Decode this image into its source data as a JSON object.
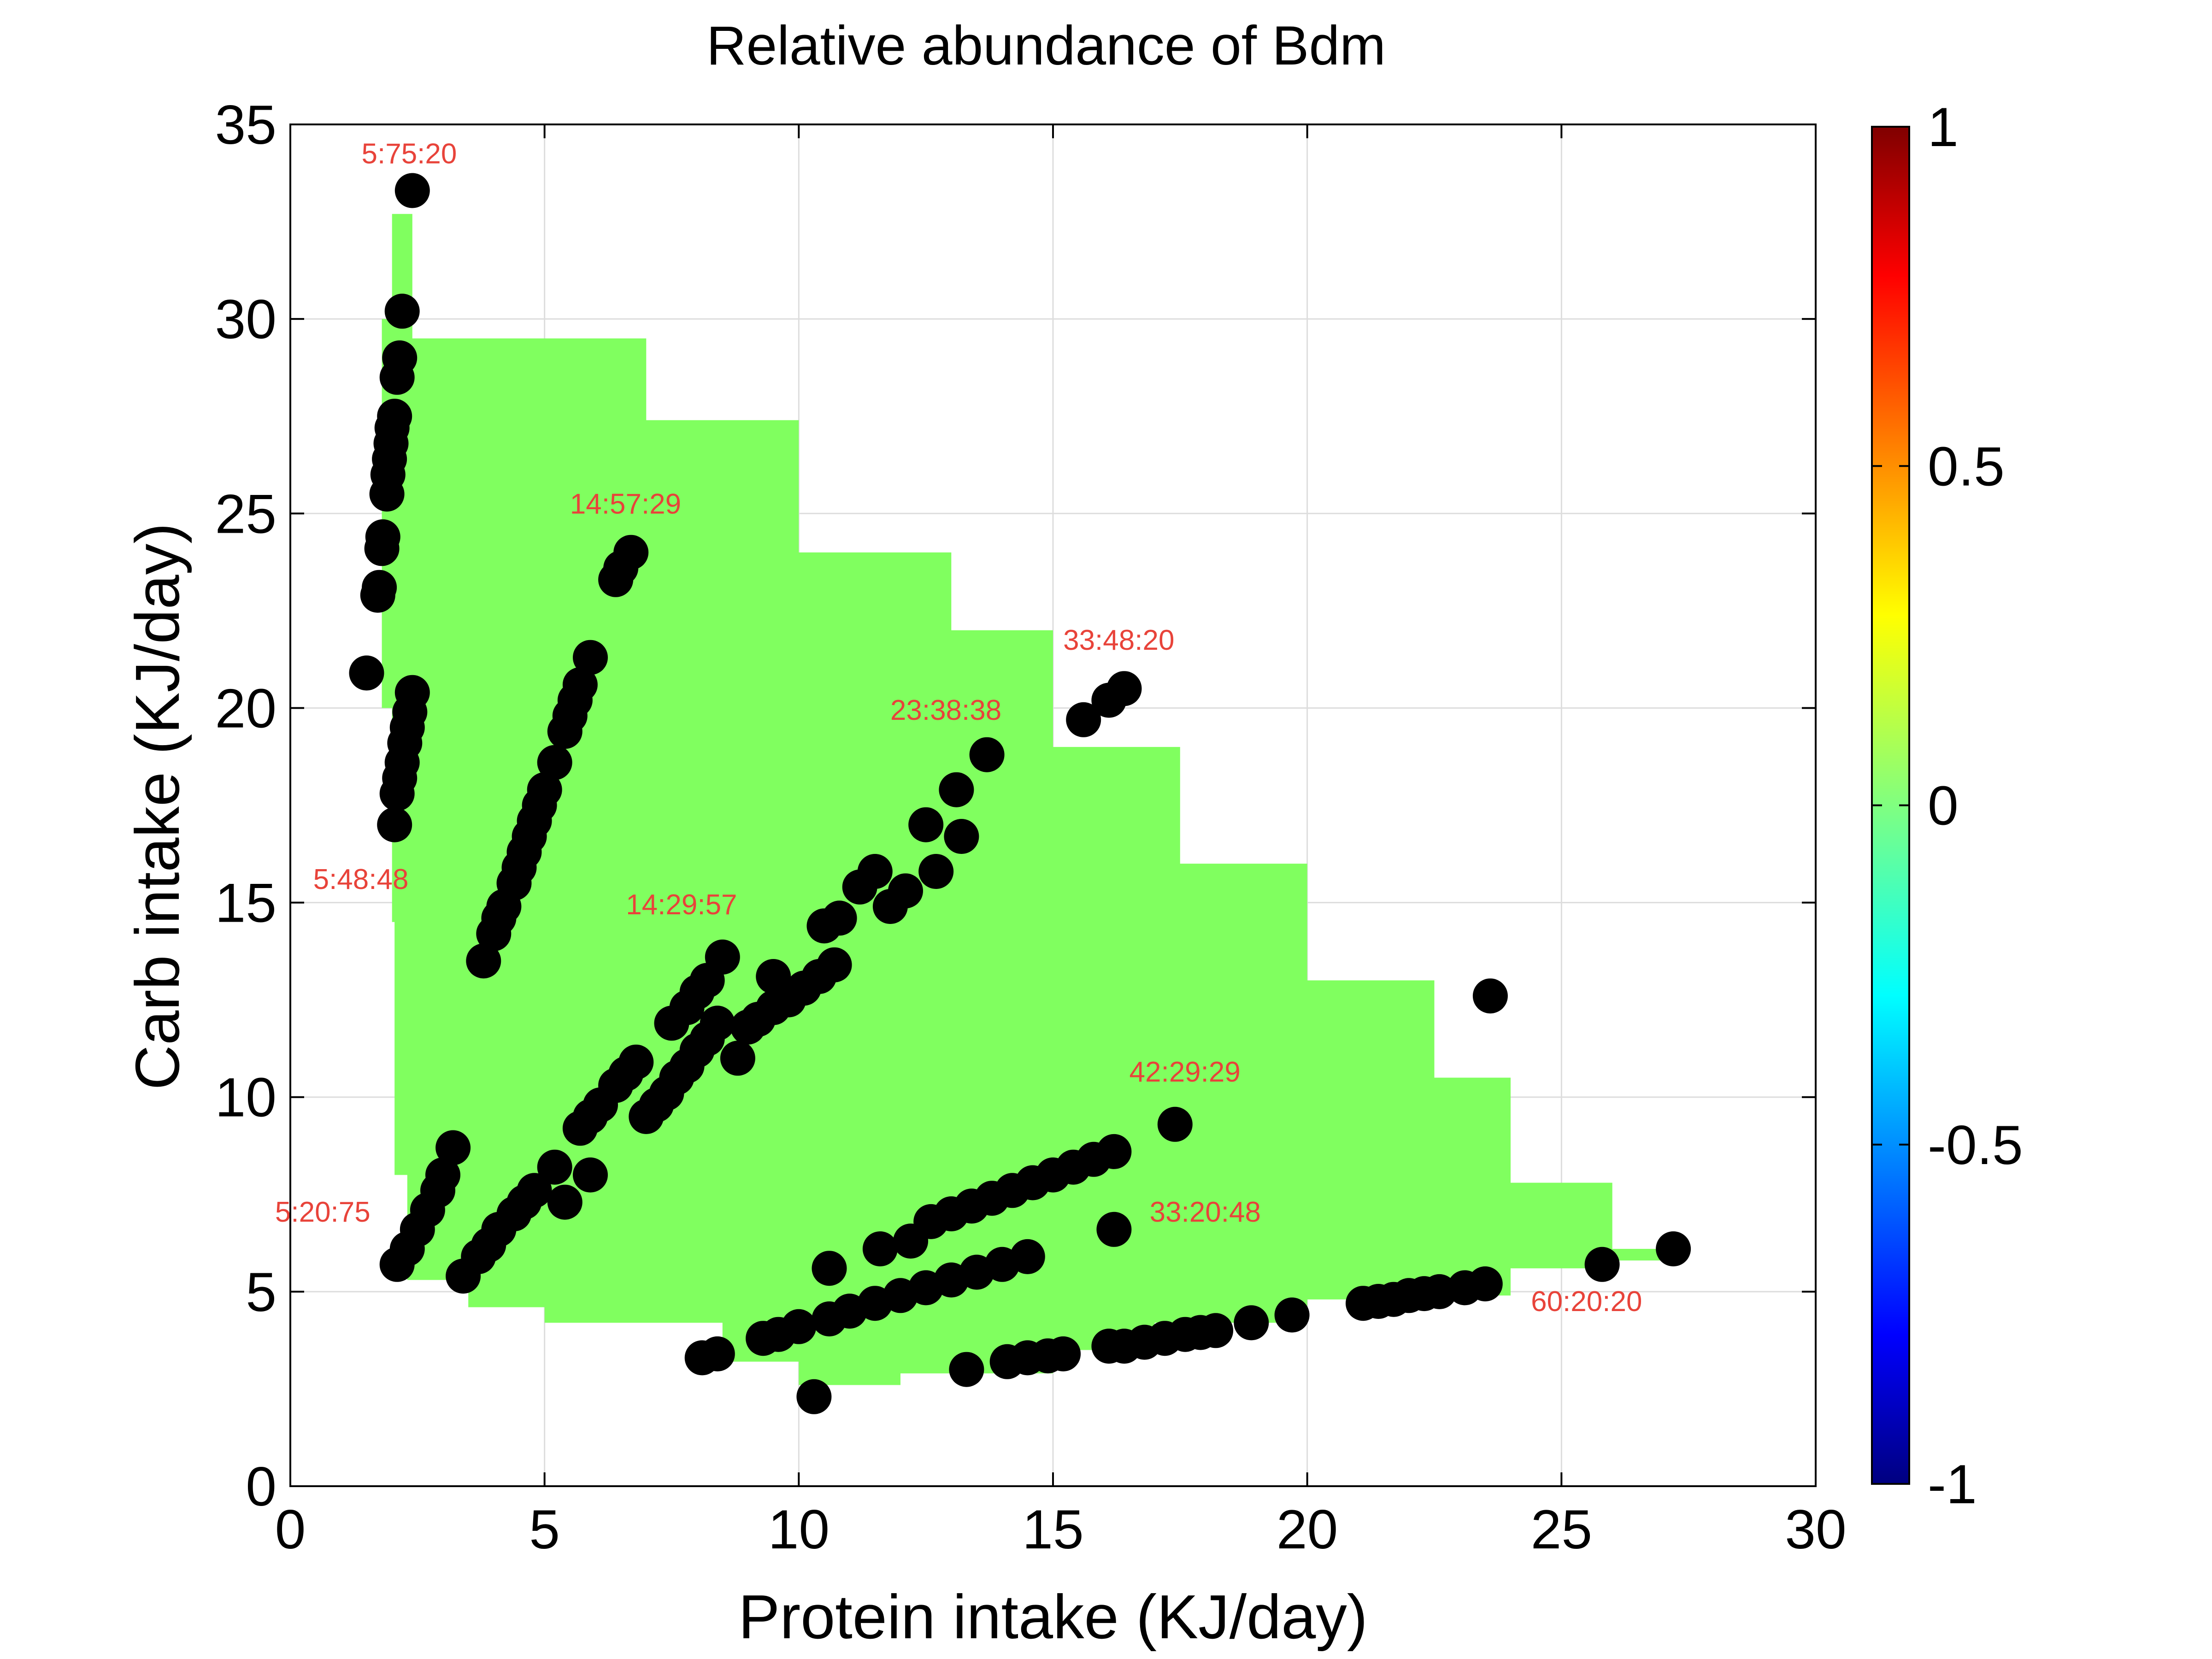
{
  "chart_data": {
    "type": "scatter",
    "title": "Relative abundance of Bdm",
    "xlabel": "Protein intake (KJ/day)",
    "ylabel": "Carb intake (KJ/day)",
    "xlim": [
      0,
      30
    ],
    "ylim": [
      0,
      35
    ],
    "xticks": [
      "0",
      "5",
      "10",
      "15",
      "20",
      "25",
      "30"
    ],
    "yticks": [
      "0",
      "5",
      "10",
      "15",
      "20",
      "25",
      "30",
      "35"
    ],
    "grid": true,
    "colorbar": {
      "range": [
        -1,
        1
      ],
      "ticks": [
        "-1",
        "-0.5",
        "0",
        "0.5",
        "1"
      ],
      "colormap": "jet"
    },
    "surface": {
      "value": 0,
      "color": "#80ff5f",
      "outline": [
        [
          2.4,
          32.7
        ],
        [
          7,
          29.5
        ],
        [
          10,
          27.4
        ],
        [
          13,
          24
        ],
        [
          15,
          22
        ],
        [
          17.5,
          19
        ],
        [
          20,
          16
        ],
        [
          22.5,
          13
        ],
        [
          24,
          10.5
        ],
        [
          26,
          7.8
        ],
        [
          27.2,
          6.1
        ],
        [
          26,
          5.8
        ],
        [
          24,
          5.6
        ],
        [
          21.5,
          4.9
        ],
        [
          20,
          4.8
        ],
        [
          17,
          4.2
        ],
        [
          15,
          3.5
        ],
        [
          12,
          2.9
        ],
        [
          10,
          2.6
        ],
        [
          8.5,
          3.2
        ],
        [
          5,
          4.2
        ],
        [
          3.5,
          4.6
        ],
        [
          2.3,
          5.3
        ],
        [
          2.05,
          8
        ],
        [
          2.0,
          14.5
        ],
        [
          1.8,
          20
        ],
        [
          1.8,
          25
        ],
        [
          2.0,
          30
        ],
        [
          2.4,
          32.7
        ]
      ]
    },
    "points": [
      [
        2.4,
        33.3
      ],
      [
        2.2,
        30.2
      ],
      [
        2.15,
        29
      ],
      [
        2.1,
        28.5
      ],
      [
        2.05,
        27.5
      ],
      [
        2.0,
        27.2
      ],
      [
        1.98,
        26.8
      ],
      [
        1.95,
        26.4
      ],
      [
        1.92,
        26
      ],
      [
        1.9,
        25.5
      ],
      [
        1.82,
        24.4
      ],
      [
        1.8,
        24.1
      ],
      [
        1.75,
        23.1
      ],
      [
        1.72,
        22.9
      ],
      [
        1.5,
        20.9
      ],
      [
        2.4,
        20.4
      ],
      [
        2.35,
        19.9
      ],
      [
        2.3,
        19.5
      ],
      [
        2.25,
        19.1
      ],
      [
        2.2,
        18.6
      ],
      [
        2.15,
        18.2
      ],
      [
        2.1,
        17.8
      ],
      [
        2.05,
        17
      ],
      [
        6.7,
        24
      ],
      [
        6.5,
        23.6
      ],
      [
        6.4,
        23.3
      ],
      [
        5.9,
        21.3
      ],
      [
        5.7,
        20.6
      ],
      [
        5.6,
        20.2
      ],
      [
        5.5,
        19.8
      ],
      [
        5.4,
        19.4
      ],
      [
        5.2,
        18.6
      ],
      [
        5.0,
        17.9
      ],
      [
        4.9,
        17.5
      ],
      [
        4.8,
        17.1
      ],
      [
        4.7,
        16.7
      ],
      [
        4.6,
        16.3
      ],
      [
        4.5,
        15.9
      ],
      [
        4.4,
        15.5
      ],
      [
        4.2,
        14.9
      ],
      [
        4.1,
        14.6
      ],
      [
        4.0,
        14.2
      ],
      [
        3.8,
        13.5
      ],
      [
        2.1,
        5.7
      ],
      [
        2.3,
        6.1
      ],
      [
        2.5,
        6.6
      ],
      [
        2.7,
        7.1
      ],
      [
        2.9,
        7.6
      ],
      [
        3.0,
        8
      ],
      [
        3.2,
        8.7
      ],
      [
        3.4,
        5.4
      ],
      [
        3.7,
        5.9
      ],
      [
        3.9,
        6.2
      ],
      [
        4.1,
        6.6
      ],
      [
        4.4,
        7
      ],
      [
        4.6,
        7.3
      ],
      [
        4.8,
        7.6
      ],
      [
        5.2,
        8.2
      ],
      [
        5.4,
        7.3
      ],
      [
        5.9,
        8
      ],
      [
        5.7,
        9.2
      ],
      [
        5.9,
        9.5
      ],
      [
        6.1,
        9.8
      ],
      [
        6.4,
        10.3
      ],
      [
        6.6,
        10.6
      ],
      [
        6.8,
        10.9
      ],
      [
        7.0,
        9.5
      ],
      [
        7.2,
        9.8
      ],
      [
        7.4,
        10.1
      ],
      [
        7.6,
        10.5
      ],
      [
        7.8,
        10.8
      ],
      [
        8.0,
        11.2
      ],
      [
        8.2,
        11.5
      ],
      [
        8.4,
        11.9
      ],
      [
        7.5,
        11.9
      ],
      [
        7.8,
        12.3
      ],
      [
        8.0,
        12.7
      ],
      [
        8.2,
        13
      ],
      [
        8.5,
        13.6
      ],
      [
        8.8,
        11
      ],
      [
        9.0,
        11.8
      ],
      [
        9.2,
        12
      ],
      [
        9.5,
        13.1
      ],
      [
        9.5,
        12.3
      ],
      [
        9.8,
        12.5
      ],
      [
        10.1,
        12.8
      ],
      [
        10.4,
        13.1
      ],
      [
        10.7,
        13.4
      ],
      [
        10.5,
        14.4
      ],
      [
        10.8,
        14.6
      ],
      [
        11.2,
        15.4
      ],
      [
        11.5,
        15.8
      ],
      [
        11.8,
        14.9
      ],
      [
        12.1,
        15.3
      ],
      [
        12.5,
        17
      ],
      [
        12.7,
        15.8
      ],
      [
        13.1,
        17.9
      ],
      [
        13.2,
        16.7
      ],
      [
        13.7,
        18.8
      ],
      [
        15.6,
        19.7
      ],
      [
        16.1,
        20.2
      ],
      [
        16.4,
        20.5
      ],
      [
        23.6,
        12.6
      ],
      [
        17.4,
        9.3
      ],
      [
        16.2,
        6.6
      ],
      [
        16.2,
        8.6
      ],
      [
        15.8,
        8.4
      ],
      [
        15.4,
        8.2
      ],
      [
        15,
        8
      ],
      [
        14.6,
        7.8
      ],
      [
        14.2,
        7.6
      ],
      [
        13.8,
        7.4
      ],
      [
        13.4,
        7.2
      ],
      [
        13,
        7
      ],
      [
        12.6,
        6.8
      ],
      [
        12.2,
        6.3
      ],
      [
        11.6,
        6.1
      ],
      [
        10.6,
        5.6
      ],
      [
        14.5,
        5.9
      ],
      [
        14,
        5.7
      ],
      [
        13.5,
        5.5
      ],
      [
        13,
        5.3
      ],
      [
        12.5,
        5.1
      ],
      [
        12,
        4.9
      ],
      [
        11.5,
        4.7
      ],
      [
        11,
        4.5
      ],
      [
        10.6,
        4.3
      ],
      [
        10,
        4.1
      ],
      [
        9.6,
        3.9
      ],
      [
        9.3,
        3.8
      ],
      [
        8.4,
        3.4
      ],
      [
        8.1,
        3.3
      ],
      [
        10.3,
        2.3
      ],
      [
        13.3,
        3
      ],
      [
        14.1,
        3.2
      ],
      [
        14.5,
        3.3
      ],
      [
        14.9,
        3.35
      ],
      [
        15.2,
        3.4
      ],
      [
        16.1,
        3.6
      ],
      [
        16.4,
        3.6
      ],
      [
        16.8,
        3.7
      ],
      [
        17.2,
        3.8
      ],
      [
        17.6,
        3.9
      ],
      [
        17.9,
        3.95
      ],
      [
        18.2,
        4
      ],
      [
        18.9,
        4.2
      ],
      [
        19.7,
        4.4
      ],
      [
        21.1,
        4.7
      ],
      [
        21.4,
        4.75
      ],
      [
        21.7,
        4.8
      ],
      [
        22,
        4.9
      ],
      [
        22.3,
        4.95
      ],
      [
        22.6,
        5
      ],
      [
        23.1,
        5.1
      ],
      [
        23.5,
        5.2
      ],
      [
        25.8,
        5.7
      ],
      [
        27.2,
        6.1
      ]
    ],
    "annotations": [
      {
        "text": "5:75:20",
        "x": 1.4,
        "y": 34.0
      },
      {
        "text": "14:57:29",
        "x": 5.5,
        "y": 25.0
      },
      {
        "text": "33:48:20",
        "x": 15.2,
        "y": 21.5
      },
      {
        "text": "23:38:38",
        "x": 11.8,
        "y": 19.7
      },
      {
        "text": "5:48:48",
        "x": 0.45,
        "y": 15.35
      },
      {
        "text": "14:29:57",
        "x": 6.6,
        "y": 14.7
      },
      {
        "text": "42:29:29",
        "x": 16.5,
        "y": 10.4
      },
      {
        "text": "5:20:75",
        "x": -0.3,
        "y": 6.8
      },
      {
        "text": "33:20:48",
        "x": 16.9,
        "y": 6.8
      },
      {
        "text": "60:20:20",
        "x": 24.4,
        "y": 4.5
      }
    ],
    "annotation_color": "#e8433a"
  }
}
